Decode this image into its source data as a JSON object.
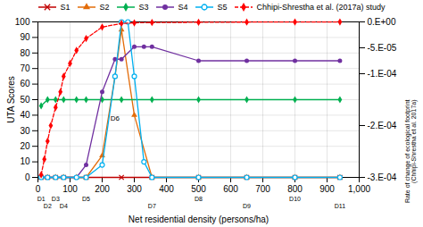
{
  "chart_data": {
    "type": "line",
    "xlabel": "Net residential density (persons/ha)",
    "ylabel": "UTA Scores",
    "y2label": "Rate of change of ecological footprint\n(Chhipi-Shrestha et al. 2017a)",
    "xlim": [
      0,
      1000
    ],
    "ylim": [
      0,
      100
    ],
    "y2lim": [
      -0.0003,
      0
    ],
    "xticks": [
      0,
      100,
      200,
      300,
      400,
      500,
      600,
      700,
      800,
      900,
      1000
    ],
    "yticks": [
      0,
      10,
      20,
      30,
      40,
      50,
      60,
      70,
      80,
      90,
      100
    ],
    "y2ticks": [
      {
        "value": 0,
        "label": "0.E+00"
      },
      {
        "value": -5e-05,
        "label": "-5.E-05"
      },
      {
        "value": -0.0001,
        "label": "-1.E-04"
      },
      {
        "value": -0.0002,
        "label": "-2.E-04"
      },
      {
        "value": -0.0003,
        "label": "-3.E-04"
      }
    ],
    "grid": true,
    "series": [
      {
        "name": "S1",
        "color": "#c00000",
        "marker": "x",
        "line_style": "solid",
        "x": [
          10,
          30,
          55,
          80,
          150,
          260,
          355,
          500,
          650,
          800,
          940
        ],
        "values": [
          0,
          0,
          0,
          0,
          0,
          0,
          0,
          0,
          0,
          0,
          0
        ]
      },
      {
        "name": "S2",
        "color": "#e36c09",
        "marker": "triangle",
        "line_style": "solid",
        "x": [
          10,
          30,
          55,
          80,
          120,
          150,
          200,
          240,
          260,
          300,
          355,
          500,
          650,
          800,
          940
        ],
        "values": [
          0,
          0,
          0,
          0,
          0,
          0,
          14,
          65,
          95,
          40,
          0,
          0,
          0,
          0,
          0
        ]
      },
      {
        "name": "S3",
        "color": "#00b050",
        "marker": "diamond",
        "line_style": "solid",
        "x": [
          10,
          30,
          55,
          80,
          120,
          150,
          200,
          260,
          355,
          500,
          650,
          800,
          940
        ],
        "values": [
          46,
          50,
          50,
          50,
          50,
          50,
          50,
          50,
          50,
          50,
          50,
          50,
          50
        ]
      },
      {
        "name": "S4",
        "color": "#7030a0",
        "marker": "circle",
        "line_style": "solid",
        "x": [
          10,
          30,
          55,
          80,
          120,
          150,
          200,
          240,
          260,
          300,
          330,
          355,
          500,
          650,
          800,
          940
        ],
        "values": [
          0,
          0,
          0,
          0,
          0,
          8,
          55,
          76,
          76,
          84,
          84,
          84,
          75,
          75,
          75,
          75
        ]
      },
      {
        "name": "S5",
        "color": "#00b0f0",
        "marker": "circle-open",
        "line_style": "solid",
        "x": [
          10,
          30,
          55,
          80,
          120,
          150,
          200,
          240,
          260,
          280,
          300,
          330,
          355,
          500,
          650,
          800,
          940
        ],
        "values": [
          0,
          0,
          0,
          0,
          0,
          0,
          8,
          65,
          100,
          100,
          65,
          10,
          0,
          0,
          0,
          0,
          0
        ]
      },
      {
        "name": "Chhipi-Shrestha et al. (2017a) study",
        "color": "#ff0000",
        "marker": "diamond",
        "line_style": "dashed",
        "axis": "y2",
        "x": [
          10,
          20,
          30,
          40,
          55,
          70,
          80,
          100,
          120,
          150,
          200,
          260,
          300,
          355,
          500,
          650,
          800,
          940
        ],
        "values": [
          -0.000295,
          -0.000265,
          -0.00023,
          -0.0002,
          -0.000165,
          -0.000135,
          -0.000105,
          -8e-05,
          -5.5e-05,
          -3.2e-05,
          -1e-05,
          -3e-06,
          -1.8e-06,
          -1.2e-06,
          -7e-07,
          -4e-07,
          -2e-07,
          -1e-07
        ]
      }
    ],
    "annotations": [
      {
        "text": "D1",
        "x": 10
      },
      {
        "text": "D2",
        "x": 30
      },
      {
        "text": "D3",
        "x": 55
      },
      {
        "text": "D4",
        "x": 80
      },
      {
        "text": "D5",
        "x": 150
      },
      {
        "text": "D7",
        "x": 355
      },
      {
        "text": "D8",
        "x": 500
      },
      {
        "text": "D9",
        "x": 650
      },
      {
        "text": "D10",
        "x": 800
      },
      {
        "text": "D11",
        "x": 940
      },
      {
        "text": "D6",
        "x": 240,
        "y": 38
      }
    ]
  }
}
